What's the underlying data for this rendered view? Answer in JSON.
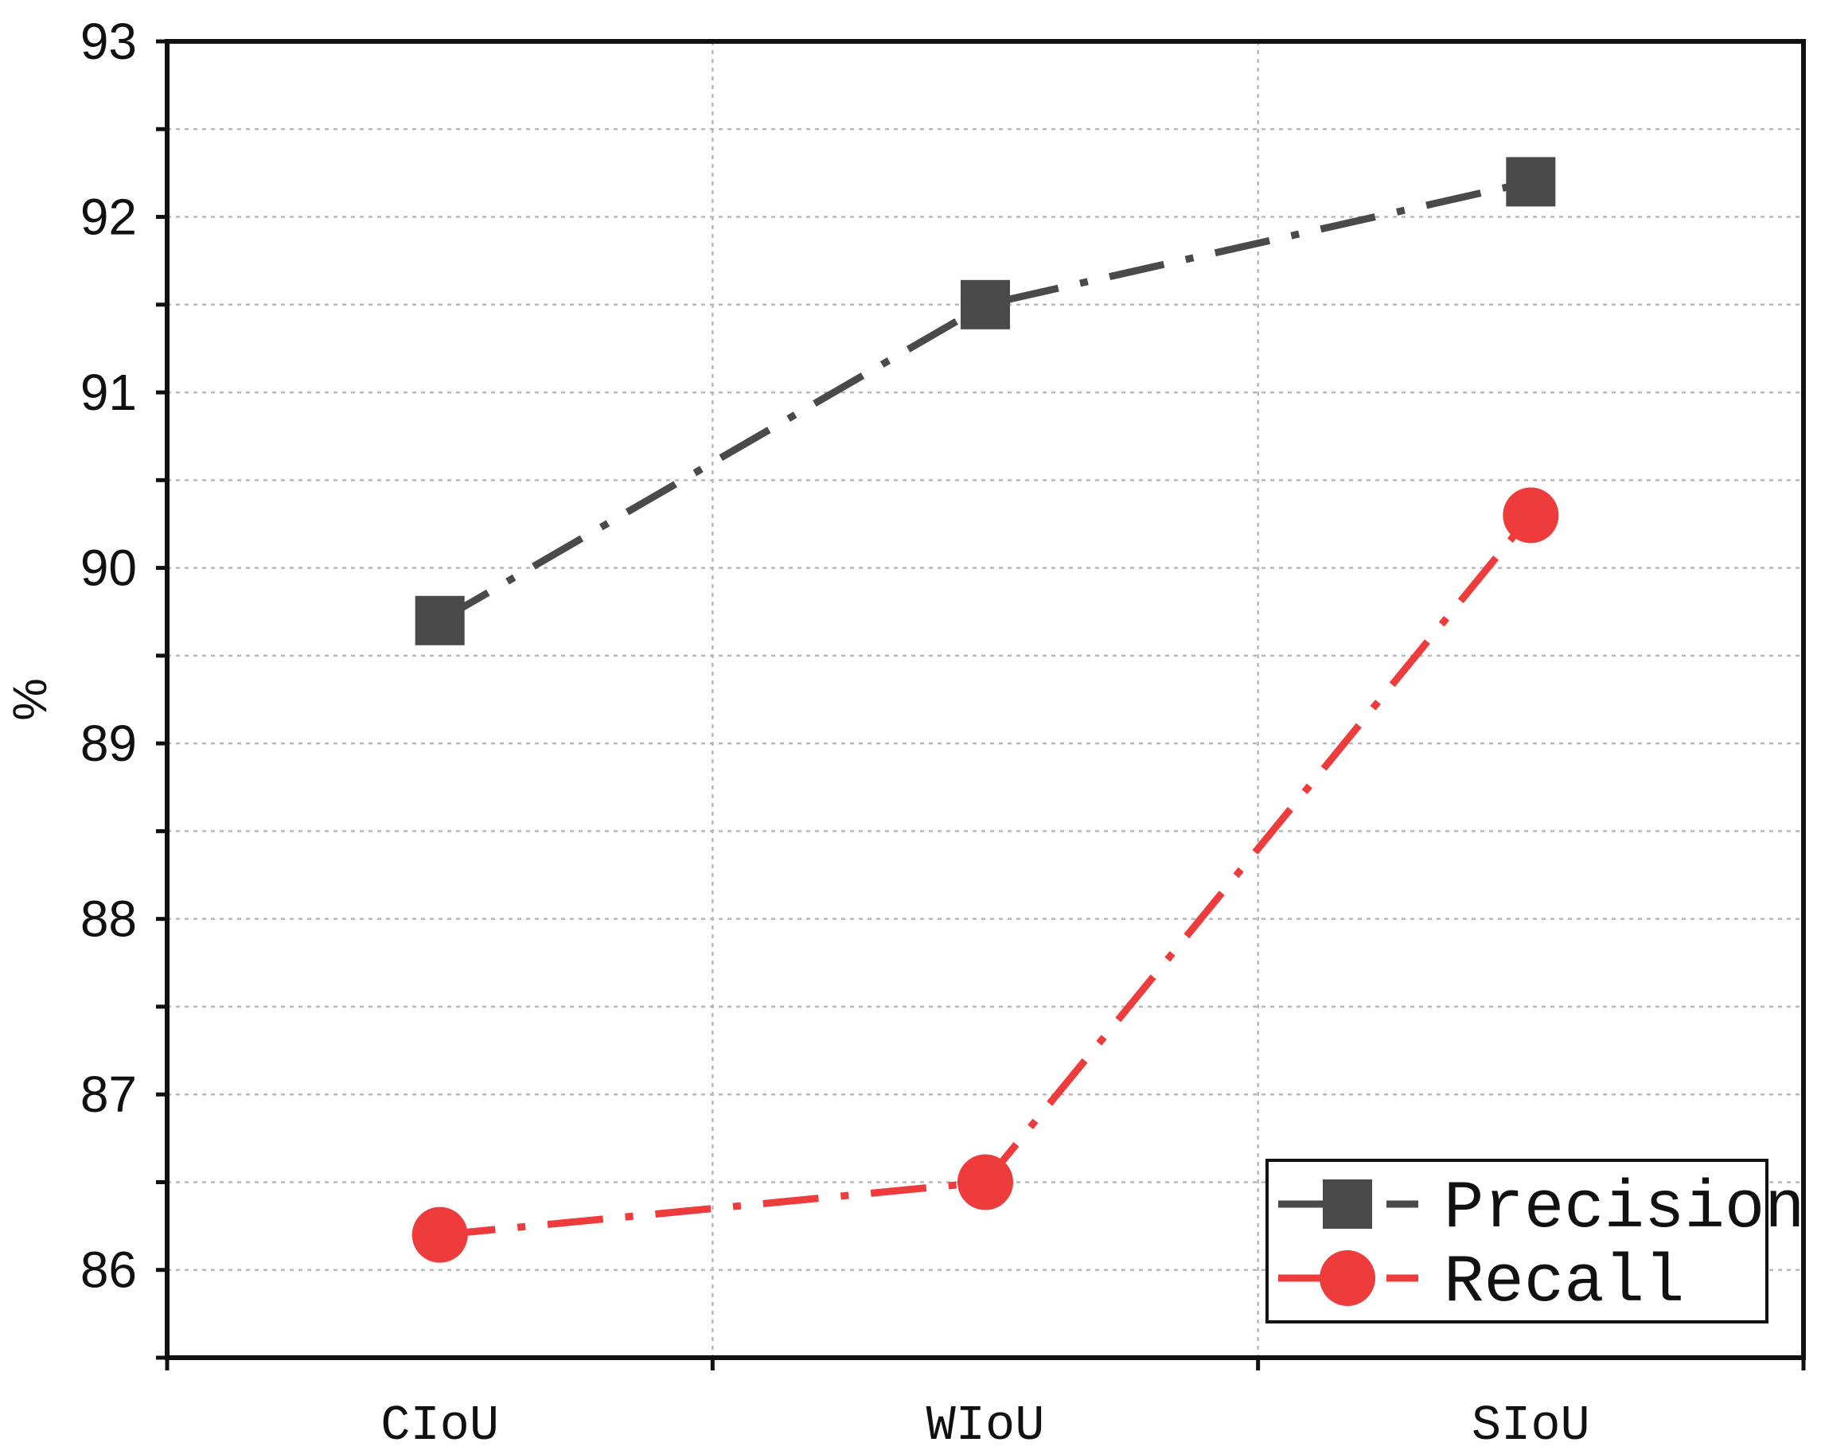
{
  "chart_data": {
    "type": "line",
    "title": "",
    "xlabel": "",
    "ylabel": "%",
    "categories": [
      "CIoU",
      "WIoU",
      "SIoU"
    ],
    "ylim": [
      85.5,
      93
    ],
    "yticks": [
      "86",
      "87",
      "88",
      "89",
      "90",
      "91",
      "92",
      "93"
    ],
    "grid": true,
    "legend_position": "bottom-right",
    "series": [
      {
        "name": "Precision",
        "values": [
          89.7,
          91.5,
          92.2
        ],
        "color": "#4a4a4a",
        "marker": "square",
        "line_style": "dash-dot"
      },
      {
        "name": "Recall",
        "values": [
          86.2,
          86.5,
          90.3
        ],
        "color": "#ee3b3b",
        "marker": "circle",
        "line_style": "dash-dot"
      }
    ]
  }
}
